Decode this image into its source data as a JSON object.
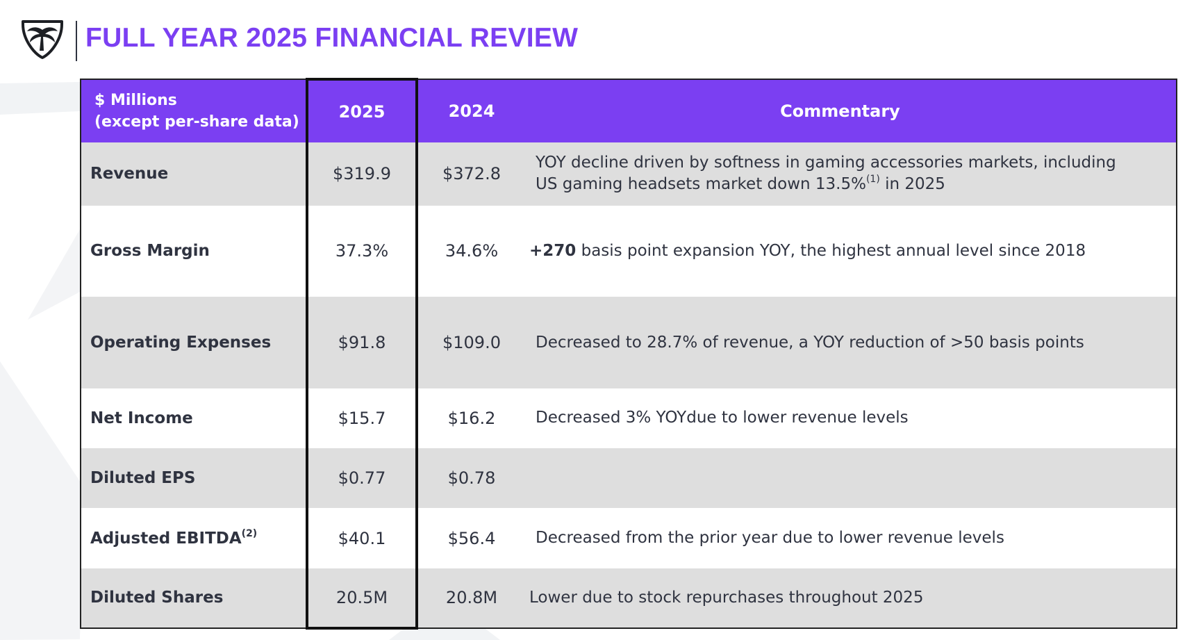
{
  "header": {
    "title": "FULL YEAR 2025 FINANCIAL REVIEW",
    "logo_icon": "palm-tree-shield-icon"
  },
  "colors": {
    "accent": "#7b3ff2",
    "row_shade": "#dedede",
    "text": "#2f3340"
  },
  "table": {
    "header": {
      "metric_line1": "$ Millions",
      "metric_line2": "(except per-share data)",
      "col_2025": "2025",
      "col_2024": "2024",
      "commentary": "Commentary"
    },
    "rows": [
      {
        "metric": "Revenue",
        "v2025": "$319.9",
        "v2024": "$372.8",
        "comment_line1": "YOY decline driven by softness in gaming accessories markets, including",
        "comment_line2_pre": "US gaming headsets market down 13.5%",
        "comment_sup": "(1)",
        "comment_line2_post": " in 2025"
      },
      {
        "metric": "Gross Margin",
        "v2025": "37.3%",
        "v2024": "34.6%",
        "comment_bold": "+270",
        "comment_rest": " basis point expansion YOY, the highest annual level since 2018"
      },
      {
        "metric": "Operating Expenses",
        "v2025": "$91.8",
        "v2024": "$109.0",
        "comment": "Decreased to 28.7% of  revenue, a YOY reduction of >50 basis points"
      },
      {
        "metric": "Net Income",
        "v2025": "$15.7",
        "v2024": "$16.2",
        "comment": "Decreased 3% YOYdue to lower revenue levels"
      },
      {
        "metric": "Diluted EPS",
        "v2025": "$0.77",
        "v2024": "$0.78",
        "comment": ""
      },
      {
        "metric": "Adjusted EBITDA",
        "metric_sup": "(2)",
        "v2025": "$40.1",
        "v2024": "$56.4",
        "comment": "Decreased from the prior year due to lower revenue levels"
      },
      {
        "metric": "Diluted Shares",
        "v2025": "20.5M",
        "v2024": "20.8M",
        "comment": "Lower due to stock repurchases throughout 2025"
      }
    ]
  }
}
